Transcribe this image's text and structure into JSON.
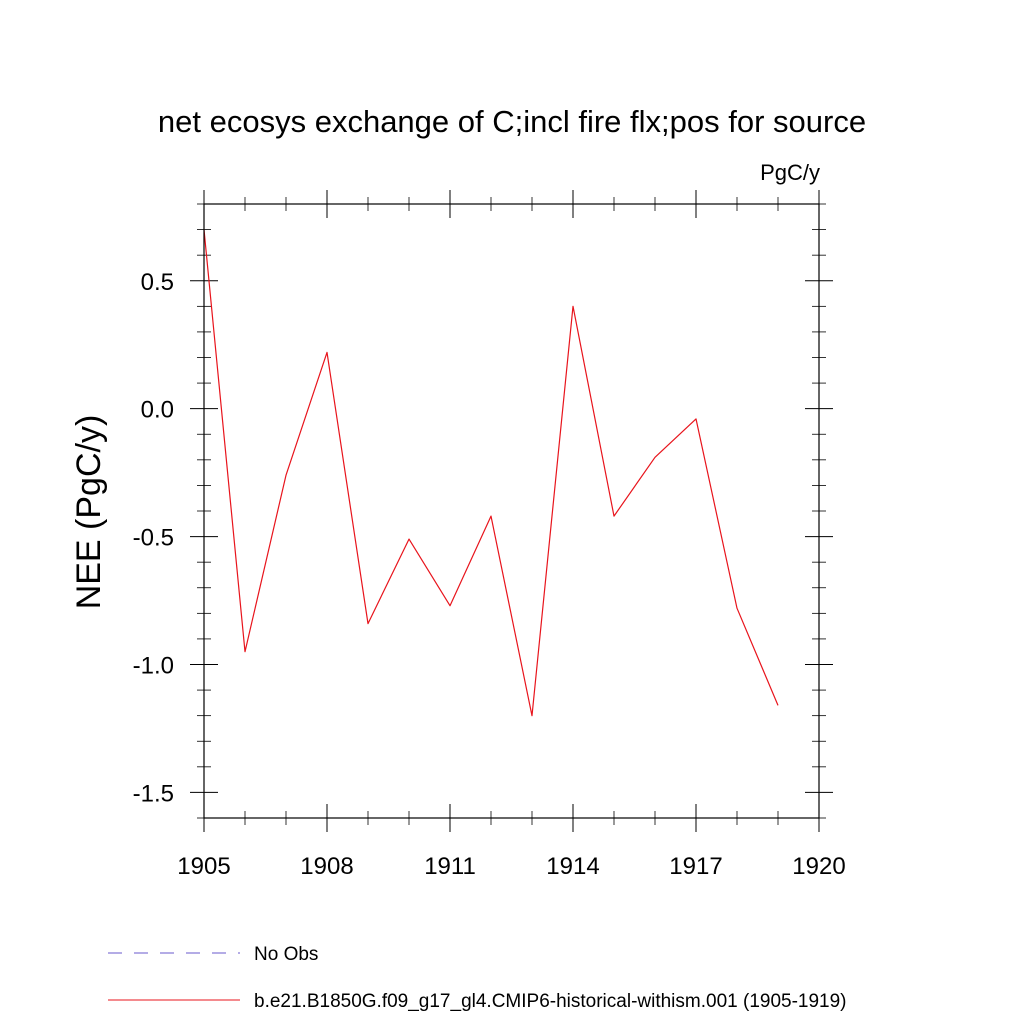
{
  "chart_data": {
    "type": "line",
    "title": "net ecosys exchange of C;incl fire flx;pos for source",
    "units_label": "PgC/y",
    "xlabel": "",
    "ylabel": "NEE  (PgC/y)",
    "xlim": [
      1905,
      1920
    ],
    "ylim": [
      -1.6,
      0.8
    ],
    "x_ticks": [
      1905,
      1908,
      1911,
      1914,
      1917,
      1920
    ],
    "x_tick_labels": [
      "1905",
      "1908",
      "1911",
      "1914",
      "1917",
      "1920"
    ],
    "y_ticks": [
      -1.5,
      -1.0,
      -0.5,
      0.0,
      0.5
    ],
    "y_tick_labels": [
      "-1.5",
      "-1.0",
      "-0.5",
      "0.0",
      "0.5"
    ],
    "grid": false,
    "legend_position": "bottom",
    "series": [
      {
        "name": "b.e21.B1850G.f09_g17_gl4.CMIP6-historical-withism.001 (1905-1919)",
        "color": "#e8141c",
        "style": "solid",
        "x": [
          1905,
          1906,
          1907,
          1908,
          1909,
          1910,
          1911,
          1912,
          1913,
          1914,
          1915,
          1916,
          1917,
          1918,
          1919
        ],
        "y": [
          0.7,
          -0.95,
          -0.26,
          0.22,
          -0.84,
          -0.51,
          -0.77,
          -0.42,
          -1.2,
          0.4,
          -0.42,
          -0.19,
          -0.04,
          -0.78,
          -1.16
        ]
      }
    ],
    "legend": [
      {
        "label": "No Obs",
        "color": "#6a5acd",
        "style": "dashed"
      },
      {
        "label": "b.e21.B1850G.f09_g17_gl4.CMIP6-historical-withism.001 (1905-1919)",
        "color": "#e8141c",
        "style": "solid"
      }
    ]
  }
}
